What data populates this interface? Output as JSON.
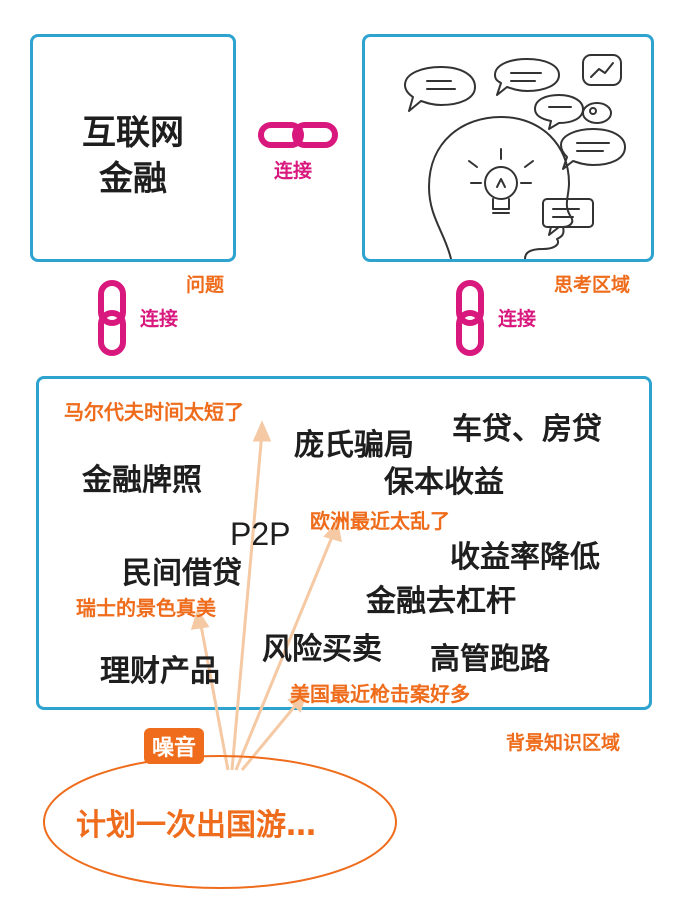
{
  "topic": {
    "line1": "互联网",
    "line2": "金融"
  },
  "connections": {
    "horizontal": "连接",
    "left_vertical": "连接",
    "right_vertical": "连接"
  },
  "labels": {
    "problem": "问题",
    "thinking_area": "思考区域",
    "background_area": "背景知识区域"
  },
  "noise_terms": [
    "马尔代夫时间太短了",
    "欧洲最近太乱了",
    "瑞士的景色真美",
    "美国最近枪击案好多"
  ],
  "knowledge_terms": [
    "庞氏骗局",
    "车贷、房贷",
    "金融牌照",
    "保本收益",
    "P2P",
    "收益率降低",
    "民间借贷",
    "金融去杠杆",
    "风险买卖",
    "高管跑路",
    "理财产品"
  ],
  "noise_label": "噪音",
  "plan": "计划一次出国游…",
  "colors": {
    "border": "#2ea3cf",
    "orange": "#ee6c1b",
    "magenta": "#d9187e",
    "arrow": "#f4c9a3"
  }
}
